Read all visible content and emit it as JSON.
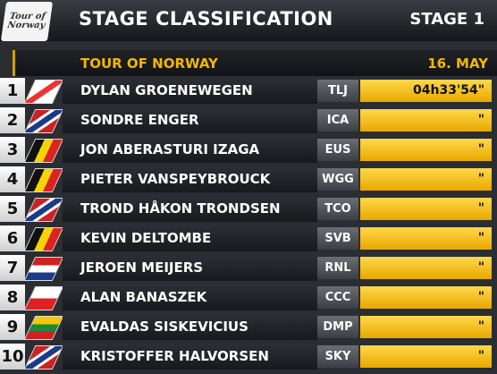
{
  "header": {
    "logo": "Tour of Norway",
    "title": "STAGE CLASSIFICATION",
    "stage": "STAGE 1"
  },
  "subheader": {
    "event": "TOUR OF NORWAY",
    "date": "16. MAY"
  },
  "table": {
    "rows": [
      {
        "rank": 1,
        "name": "DYLAN GROENEWEGEN",
        "team": "TLJ",
        "time": "04h33'54\""
      },
      {
        "rank": 2,
        "name": "SONDRE ENGER",
        "team": "ICA",
        "time": "\""
      },
      {
        "rank": 3,
        "name": "JON ABERASTURI IZAGA",
        "team": "EUS",
        "time": "\""
      },
      {
        "rank": 4,
        "name": "PIETER VANSPEYBROUCK",
        "team": "WGG",
        "time": "\""
      },
      {
        "rank": 5,
        "name": "TROND HÅKON TRONDSEN",
        "team": "TCO",
        "time": "\""
      },
      {
        "rank": 6,
        "name": "KEVIN DELTOMBE",
        "team": "SVB",
        "time": "\""
      },
      {
        "rank": 7,
        "name": "JEROEN MEIJERS",
        "team": "RNL",
        "time": "\""
      },
      {
        "rank": 8,
        "name": "ALAN BANASZEK",
        "team": "CCC",
        "time": "\""
      },
      {
        "rank": 9,
        "name": "EVALDAS SISKEVICIUS",
        "team": "DMP",
        "time": "\""
      },
      {
        "rank": 10,
        "name": "KRISTOFFER HALVORSEN",
        "team": "SKY",
        "time": "\""
      }
    ]
  }
}
